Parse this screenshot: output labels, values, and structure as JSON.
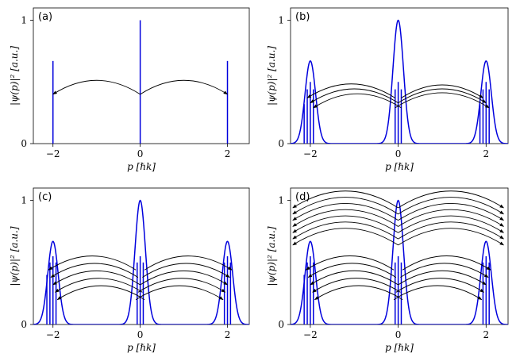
{
  "figure": {
    "accent_color": "#0000dd",
    "arrow_color": "#000000"
  },
  "chart_data": [
    {
      "panel": "(a)",
      "type": "line",
      "xlabel": "p [ℏk]",
      "ylabel": "|ψ(p)|² [a.u.]",
      "xlim": [
        -2.45,
        2.5
      ],
      "ylim": [
        0,
        1.1
      ],
      "xticks": [
        -2,
        0,
        2
      ],
      "xtick_labels": [
        "−2",
        "0",
        "2"
      ],
      "yticks": [
        0,
        1
      ],
      "ytick_labels": [
        "0",
        "1"
      ],
      "peak_width": 0,
      "peaks": [
        {
          "center": -2,
          "height": 0.67
        },
        {
          "center": 0,
          "height": 1.0
        },
        {
          "center": 2,
          "height": 0.67
        }
      ],
      "spikes": [
        {
          "x": -2,
          "height": 0.67
        },
        {
          "x": 0,
          "height": 1.0
        },
        {
          "x": 2,
          "height": 0.67
        }
      ],
      "arrows": [
        {
          "from": 0,
          "to": -2,
          "y": 0.4
        },
        {
          "from": 0,
          "to": 2,
          "y": 0.4
        }
      ]
    },
    {
      "panel": "(b)",
      "type": "line",
      "xlabel": "p [ℏk]",
      "ylabel": "|ψ(p)|² [a.u.]",
      "xlim": [
        -2.45,
        2.5
      ],
      "ylim": [
        0,
        1.1
      ],
      "xticks": [
        -2,
        0,
        2
      ],
      "xtick_labels": [
        "−2",
        "0",
        "2"
      ],
      "yticks": [
        0,
        1
      ],
      "ytick_labels": [
        "0",
        "1"
      ],
      "peak_width": 0.12,
      "peaks": [
        {
          "center": -2,
          "height": 0.67
        },
        {
          "center": 0,
          "height": 1.0
        },
        {
          "center": 2,
          "height": 0.67
        }
      ],
      "spikes": [
        {
          "x": -2.14,
          "height": 0.32
        },
        {
          "x": -2.07,
          "height": 0.44
        },
        {
          "x": -2.0,
          "height": 0.5
        },
        {
          "x": -1.93,
          "height": 0.44
        },
        {
          "x": -0.07,
          "height": 0.44
        },
        {
          "x": 0.0,
          "height": 0.5
        },
        {
          "x": 0.07,
          "height": 0.44
        },
        {
          "x": 1.86,
          "height": 0.32
        },
        {
          "x": 1.93,
          "height": 0.44
        },
        {
          "x": 2.0,
          "height": 0.5
        },
        {
          "x": 2.07,
          "height": 0.44
        }
      ],
      "arrows": [
        {
          "from": -0.07,
          "to": -2.07,
          "y": 0.37
        },
        {
          "from": 0.07,
          "to": 1.93,
          "y": 0.37
        },
        {
          "from": 0.0,
          "to": -2.0,
          "y": 0.33
        },
        {
          "from": 0.0,
          "to": 2.0,
          "y": 0.33
        },
        {
          "from": 0.07,
          "to": -1.93,
          "y": 0.29
        },
        {
          "from": -0.07,
          "to": 2.07,
          "y": 0.29
        }
      ]
    },
    {
      "panel": "(c)",
      "type": "line",
      "xlabel": "p [ℏk]",
      "ylabel": "|ψ(p)|² [a.u.]",
      "xlim": [
        -2.45,
        2.5
      ],
      "ylim": [
        0,
        1.1
      ],
      "xticks": [
        -2,
        0,
        2
      ],
      "xtick_labels": [
        "−2",
        "0",
        "2"
      ],
      "yticks": [
        0,
        1
      ],
      "ytick_labels": [
        "0",
        "1"
      ],
      "peak_width": 0.12,
      "peaks": [
        {
          "center": -2,
          "height": 0.67
        },
        {
          "center": 0,
          "height": 1.0
        },
        {
          "center": 2,
          "height": 0.67
        }
      ],
      "spikes": [
        {
          "x": -2.14,
          "height": 0.4
        },
        {
          "x": -2.07,
          "height": 0.5
        },
        {
          "x": -2.0,
          "height": 0.55
        },
        {
          "x": -1.93,
          "height": 0.5
        },
        {
          "x": -0.07,
          "height": 0.5
        },
        {
          "x": 0.0,
          "height": 0.55
        },
        {
          "x": 0.07,
          "height": 0.5
        },
        {
          "x": 1.93,
          "height": 0.5
        },
        {
          "x": 2.0,
          "height": 0.55
        },
        {
          "x": 2.07,
          "height": 0.5
        }
      ],
      "arrows": [
        {
          "from": -0.1,
          "to": -2.1,
          "y": 0.44
        },
        {
          "from": 0.1,
          "to": 2.1,
          "y": 0.44
        },
        {
          "from": -0.05,
          "to": -2.05,
          "y": 0.38
        },
        {
          "from": 0.05,
          "to": 2.05,
          "y": 0.38
        },
        {
          "from": 0.0,
          "to": -2.0,
          "y": 0.32
        },
        {
          "from": 0.0,
          "to": 2.0,
          "y": 0.32
        },
        {
          "from": 0.05,
          "to": -1.95,
          "y": 0.26
        },
        {
          "from": -0.05,
          "to": 1.95,
          "y": 0.26
        },
        {
          "from": 0.1,
          "to": -1.9,
          "y": 0.2
        },
        {
          "from": -0.1,
          "to": 1.9,
          "y": 0.2
        }
      ]
    },
    {
      "panel": "(d)",
      "type": "line",
      "xlabel": "p [ℏk]",
      "ylabel": "|ψ(p)|² [a.u.]",
      "xlim": [
        -2.45,
        2.5
      ],
      "ylim": [
        0,
        1.1
      ],
      "xticks": [
        -2,
        0,
        2
      ],
      "xtick_labels": [
        "−2",
        "0",
        "2"
      ],
      "yticks": [
        0,
        1
      ],
      "ytick_labels": [
        "0",
        "1"
      ],
      "peak_width": 0.12,
      "peaks": [
        {
          "center": -2,
          "height": 0.67
        },
        {
          "center": 0,
          "height": 1.0
        },
        {
          "center": 2,
          "height": 0.67
        }
      ],
      "spikes": [
        {
          "x": -2.14,
          "height": 0.4
        },
        {
          "x": -2.07,
          "height": 0.5
        },
        {
          "x": -2.0,
          "height": 0.55
        },
        {
          "x": -1.93,
          "height": 0.5
        },
        {
          "x": -0.07,
          "height": 0.5
        },
        {
          "x": 0.0,
          "height": 0.55
        },
        {
          "x": 0.07,
          "height": 0.5
        },
        {
          "x": 1.93,
          "height": 0.5
        },
        {
          "x": 2.0,
          "height": 0.55
        },
        {
          "x": 2.07,
          "height": 0.5
        }
      ],
      "arrows": [
        {
          "from": -0.1,
          "to": -2.1,
          "y": 0.44
        },
        {
          "from": 0.1,
          "to": 2.1,
          "y": 0.44
        },
        {
          "from": -0.05,
          "to": -2.05,
          "y": 0.38
        },
        {
          "from": 0.05,
          "to": 2.05,
          "y": 0.38
        },
        {
          "from": 0.0,
          "to": -2.0,
          "y": 0.32
        },
        {
          "from": 0.0,
          "to": 2.0,
          "y": 0.32
        },
        {
          "from": 0.05,
          "to": -1.95,
          "y": 0.26
        },
        {
          "from": -0.05,
          "to": 1.95,
          "y": 0.26
        },
        {
          "from": 0.1,
          "to": -1.9,
          "y": 0.2
        },
        {
          "from": -0.1,
          "to": 1.9,
          "y": 0.2
        },
        {
          "from": 0.0,
          "to": -2.4,
          "y": 0.94
        },
        {
          "from": 0.0,
          "to": 2.4,
          "y": 0.94
        },
        {
          "from": 0.0,
          "to": -2.4,
          "y": 0.89
        },
        {
          "from": 0.0,
          "to": 2.4,
          "y": 0.89
        },
        {
          "from": 0.0,
          "to": -2.4,
          "y": 0.84
        },
        {
          "from": 0.0,
          "to": 2.4,
          "y": 0.84
        },
        {
          "from": 0.0,
          "to": -2.4,
          "y": 0.79
        },
        {
          "from": 0.0,
          "to": 2.4,
          "y": 0.79
        },
        {
          "from": 0.0,
          "to": -2.4,
          "y": 0.74
        },
        {
          "from": 0.0,
          "to": 2.4,
          "y": 0.74
        },
        {
          "from": 0.0,
          "to": -2.4,
          "y": 0.69
        },
        {
          "from": 0.0,
          "to": 2.4,
          "y": 0.69
        },
        {
          "from": 0.0,
          "to": -2.4,
          "y": 0.64
        },
        {
          "from": 0.0,
          "to": 2.4,
          "y": 0.64
        }
      ]
    }
  ]
}
